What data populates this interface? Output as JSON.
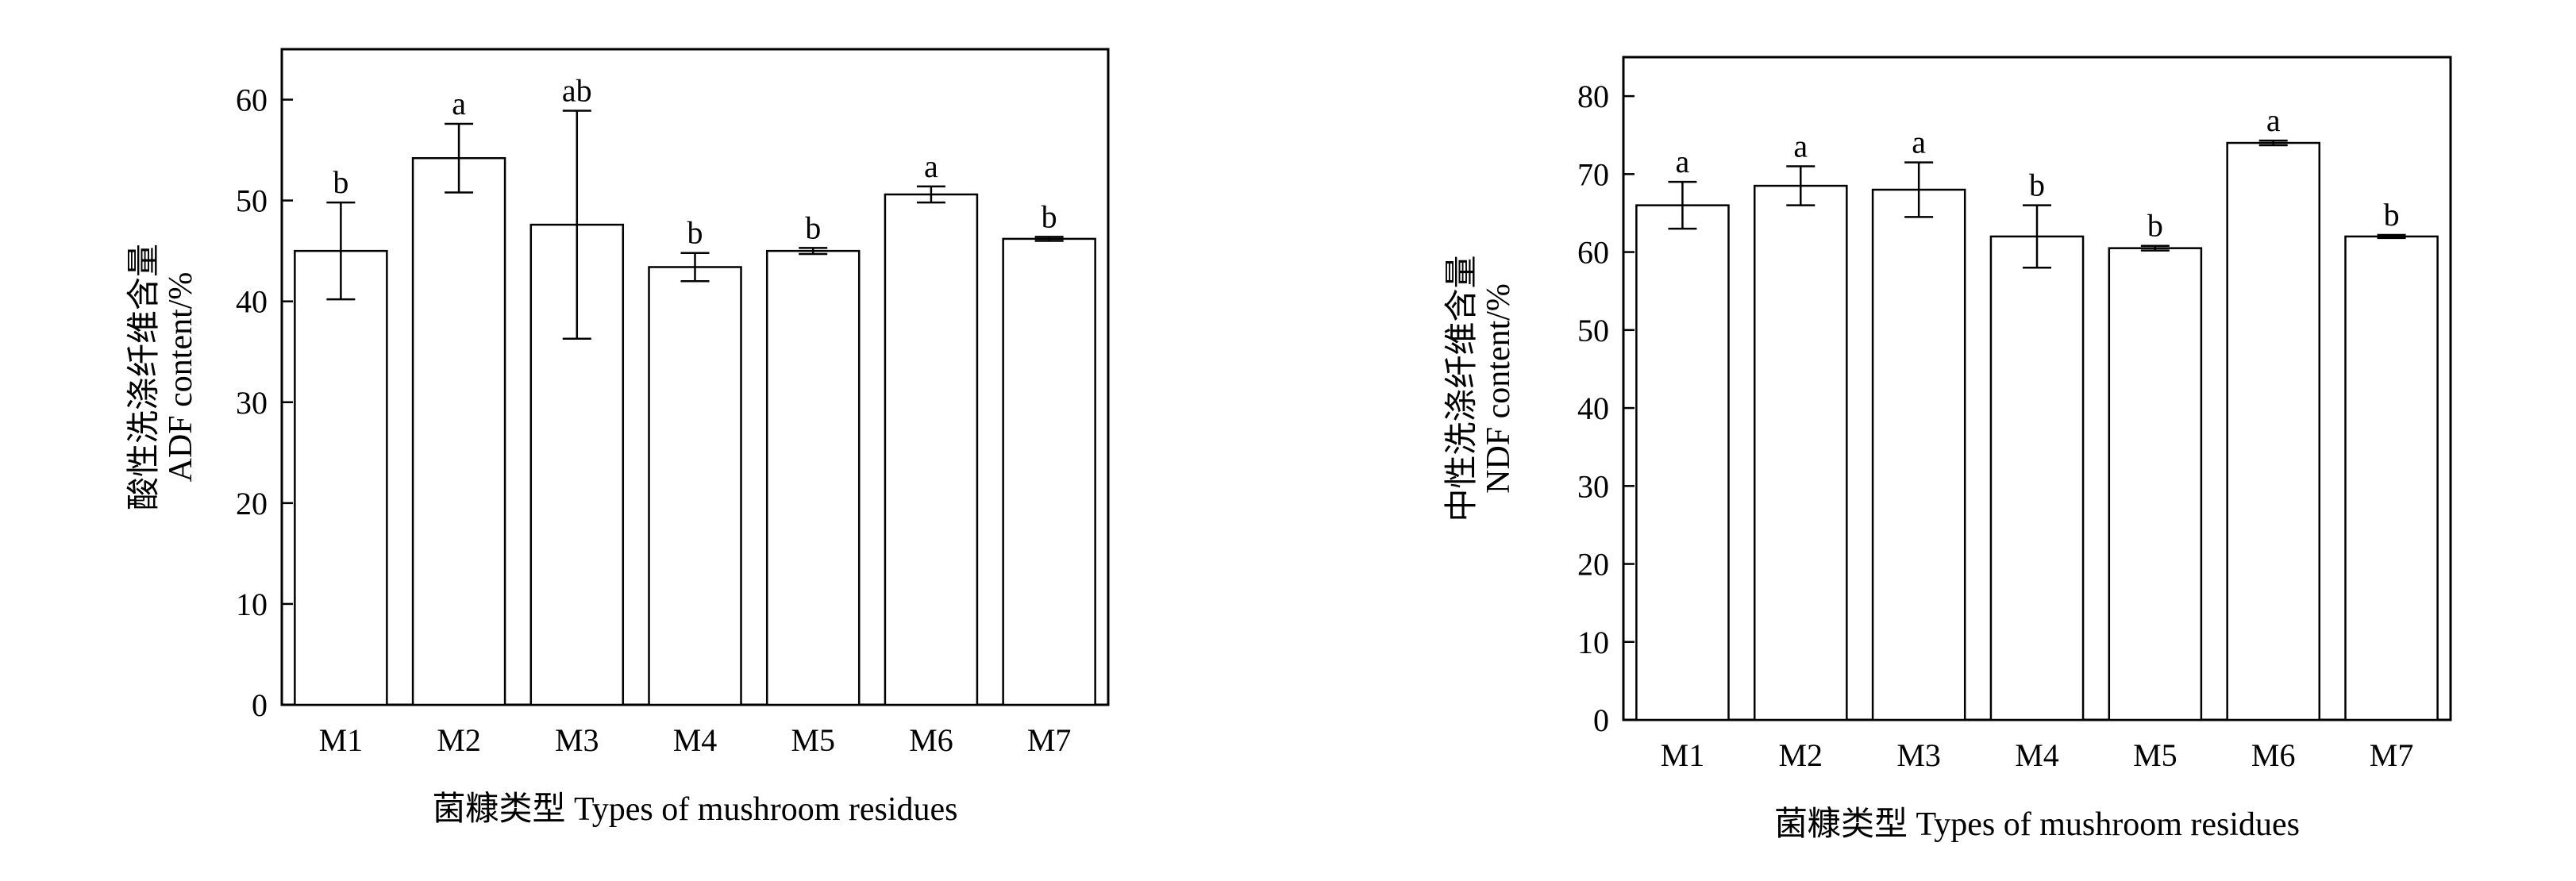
{
  "chart_data": [
    {
      "type": "bar",
      "categories": [
        "M1",
        "M2",
        "M3",
        "M4",
        "M5",
        "M6",
        "M7"
      ],
      "values": [
        45.0,
        54.2,
        47.6,
        43.4,
        45.0,
        50.6,
        46.2
      ],
      "errors": [
        4.8,
        3.4,
        11.3,
        1.4,
        0.3,
        0.8,
        0.2
      ],
      "significance": [
        "b",
        "a",
        "ab",
        "b",
        "b",
        "a",
        "b"
      ],
      "xlabel": "菌糠类型 Types of mushroom residues",
      "ylabel_cn": "酸性洗涤纤维含量",
      "ylabel_en": "ADF content/%",
      "ylim": [
        0,
        65
      ],
      "yticks": [
        0,
        10,
        20,
        30,
        40,
        50,
        60
      ],
      "grid": false
    },
    {
      "type": "bar",
      "categories": [
        "M1",
        "M2",
        "M3",
        "M4",
        "M5",
        "M6",
        "M7"
      ],
      "values": [
        66.0,
        68.5,
        68.0,
        62.0,
        60.5,
        74.0,
        62.0
      ],
      "errors": [
        3.0,
        2.5,
        3.5,
        4.0,
        0.3,
        0.3,
        0.2
      ],
      "significance": [
        "a",
        "a",
        "a",
        "b",
        "b",
        "a",
        "b"
      ],
      "xlabel": "菌糠类型 Types of mushroom residues",
      "ylabel_cn": "中性洗涤纤维含量",
      "ylabel_en": "NDF content/%",
      "ylim": [
        0,
        85
      ],
      "yticks": [
        0,
        10,
        20,
        30,
        40,
        50,
        60,
        70,
        80
      ],
      "grid": false
    }
  ]
}
